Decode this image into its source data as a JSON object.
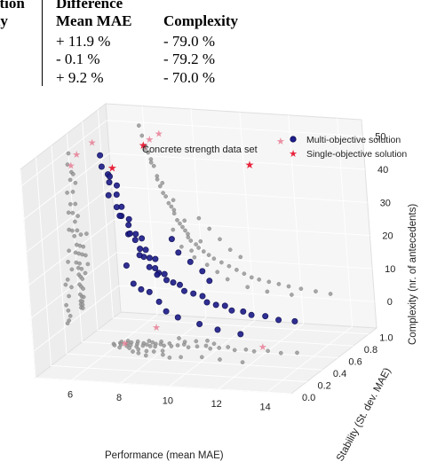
{
  "table": {
    "left_header_lines": [
      "ution",
      "ity"
    ],
    "columns": [
      {
        "header_lines": [
          "Difference",
          "Mean MAE"
        ],
        "values": [
          "+ 11.9 %",
          "- 0.1 %",
          "+ 9.2 %"
        ]
      },
      {
        "header_lines": [
          "",
          "Complexity"
        ],
        "values": [
          "- 79.0 %",
          "- 79.2 %",
          "- 70.0 %"
        ]
      }
    ]
  },
  "chart_data": {
    "type": "scatter",
    "title": "Concrete strength data set",
    "projection": "3d",
    "grid": true,
    "legend": {
      "placement": "top-right",
      "entries": [
        "Multi-objective solution",
        "Single-objective solution"
      ]
    },
    "axes": {
      "x": {
        "label": "Performance (mean MAE)",
        "range": [
          4.5,
          15
        ],
        "ticks": [
          6,
          8,
          10,
          12,
          14
        ]
      },
      "y": {
        "label": "Stability (St. dev. MAE)",
        "range": [
          0,
          1.1
        ],
        "ticks": [
          0.0,
          0.2,
          0.4,
          0.6,
          0.8,
          1.0
        ]
      },
      "z": {
        "label": "Complexity (nr. of antecedents)",
        "range": [
          -8,
          55
        ],
        "ticks": [
          0,
          10,
          20,
          30,
          40,
          50
        ]
      }
    },
    "colors": {
      "multi": "#1f1f8c",
      "single": "#e8243c",
      "projection": "#999999"
    },
    "series": [
      {
        "name": "Multi-objective solution",
        "marker": "circle",
        "points": [
          [
            5.8,
            0.6,
            49
          ],
          [
            5.9,
            0.58,
            46
          ],
          [
            6.0,
            0.62,
            43
          ],
          [
            6.0,
            0.64,
            42
          ],
          [
            6.1,
            0.6,
            41
          ],
          [
            6.2,
            0.66,
            39
          ],
          [
            6.3,
            0.62,
            37
          ],
          [
            6.4,
            0.58,
            34
          ],
          [
            6.4,
            0.64,
            33
          ],
          [
            6.5,
            0.6,
            31
          ],
          [
            6.6,
            0.66,
            29
          ],
          [
            6.7,
            0.62,
            28
          ],
          [
            6.8,
            0.58,
            26
          ],
          [
            6.9,
            0.64,
            25
          ],
          [
            7.0,
            0.6,
            24
          ],
          [
            7.0,
            0.68,
            23
          ],
          [
            7.1,
            0.62,
            21
          ],
          [
            7.2,
            0.66,
            20
          ],
          [
            7.3,
            0.6,
            19
          ],
          [
            7.4,
            0.64,
            18
          ],
          [
            7.5,
            0.68,
            17
          ],
          [
            7.5,
            0.6,
            16
          ],
          [
            7.6,
            0.64,
            15
          ],
          [
            7.8,
            0.62,
            14
          ],
          [
            7.9,
            0.66,
            13
          ],
          [
            8.1,
            0.62,
            12
          ],
          [
            8.3,
            0.64,
            11
          ],
          [
            8.5,
            0.66,
            10
          ],
          [
            8.8,
            0.62,
            9
          ],
          [
            9.1,
            0.64,
            8
          ],
          [
            9.4,
            0.66,
            7
          ],
          [
            9.7,
            0.62,
            6
          ],
          [
            10.0,
            0.64,
            5
          ],
          [
            10.3,
            0.66,
            4.5
          ],
          [
            10.7,
            0.62,
            4
          ],
          [
            11.1,
            0.64,
            3.5
          ],
          [
            11.5,
            0.62,
            3
          ],
          [
            12.0,
            0.64,
            2.5
          ],
          [
            12.6,
            0.62,
            2
          ],
          [
            13.2,
            0.64,
            1.5
          ],
          [
            8.0,
            0.75,
            22
          ],
          [
            8.4,
            0.7,
            19
          ],
          [
            8.8,
            0.72,
            16
          ],
          [
            9.2,
            0.74,
            13
          ],
          [
            9.6,
            0.7,
            11
          ],
          [
            7.6,
            0.45,
            12
          ],
          [
            8.2,
            0.48,
            8
          ],
          [
            8.6,
            0.44,
            6
          ],
          [
            9.0,
            0.46,
            4
          ],
          [
            9.8,
            0.48,
            2
          ],
          [
            10.6,
            0.46,
            1
          ],
          [
            11.6,
            0.44,
            0.5
          ],
          [
            6.9,
            0.5,
            18
          ],
          [
            7.2,
            0.48,
            13
          ],
          [
            7.7,
            0.52,
            10
          ],
          [
            6.2,
            0.55,
            38
          ],
          [
            6.6,
            0.55,
            32
          ],
          [
            7.0,
            0.54,
            27
          ],
          [
            7.4,
            0.52,
            21
          ],
          [
            8.0,
            0.54,
            15
          ]
        ]
      },
      {
        "name": "Single-objective solution",
        "marker": "star",
        "points": [
          [
            6.2,
            0.62,
            45
          ],
          [
            11.6,
            0.7,
            47
          ],
          [
            6.6,
            0.9,
            47
          ]
        ]
      }
    ]
  }
}
